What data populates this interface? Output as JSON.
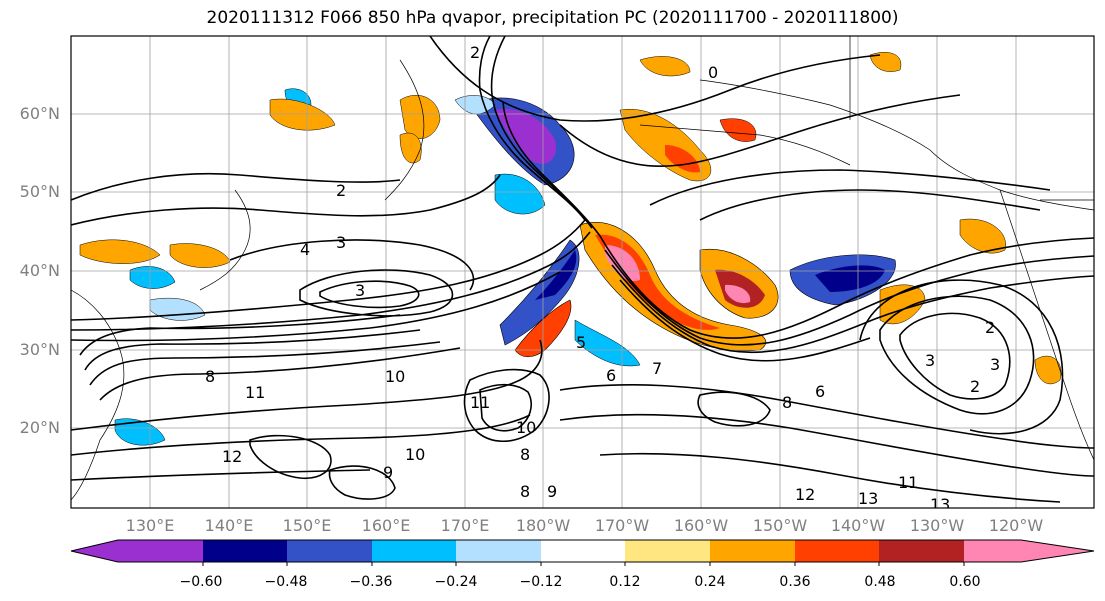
{
  "title": "2020111312 F066 850 hPa qvapor, precipitation PC (2020111700 - 2020111800)",
  "lat_labels": [
    "60°N",
    "50°N",
    "40°N",
    "30°N",
    "20°N"
  ],
  "lon_labels": [
    "130°E",
    "140°E",
    "150°E",
    "160°E",
    "170°E",
    "180°W",
    "170°W",
    "160°W",
    "150°W",
    "140°W",
    "130°W",
    "120°W"
  ],
  "colorbar": {
    "colors": [
      "#9b30d0",
      "#00008b",
      "#3352c8",
      "#00bfff",
      "#b3e0ff",
      "#ffffff",
      "#ffe680",
      "#ffa500",
      "#ff4000",
      "#b22222",
      "#ff85b3"
    ],
    "ticks": [
      "−0.60",
      "−0.48",
      "−0.36",
      "−0.24",
      "−0.12",
      "0.12",
      "0.24",
      "0.36",
      "0.48",
      "0.60"
    ]
  },
  "contour_labels": [
    "2",
    "0",
    "3",
    "2",
    "3",
    "4",
    "8",
    "10",
    "11",
    "12",
    "9",
    "10",
    "9",
    "11",
    "10",
    "8",
    "6",
    "7",
    "5",
    "8",
    "8",
    "6",
    "12",
    "13",
    "11",
    "13",
    "2",
    "3",
    "2",
    "3"
  ]
}
